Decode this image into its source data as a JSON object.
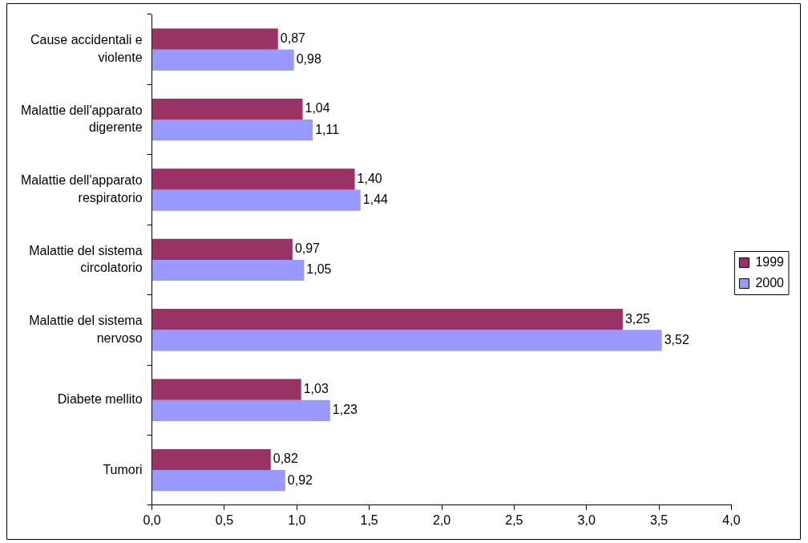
{
  "chart_data": {
    "type": "bar",
    "orientation": "horizontal",
    "categories": [
      "Cause accidentali e violente",
      "Malattie dell'apparato digerente",
      "Malattie dell'apparato respiratorio",
      "Malattie del sistema circolatorio",
      "Malattie del sistema nervoso",
      "Diabete mellito",
      "Tumori"
    ],
    "series": [
      {
        "name": "1999",
        "color": "#993366",
        "values": [
          0.87,
          1.04,
          1.4,
          0.97,
          3.25,
          1.03,
          0.82
        ],
        "value_labels": [
          "0,87",
          "1,04",
          "1,40",
          "0,97",
          "3,25",
          "1,03",
          "0,82"
        ]
      },
      {
        "name": "2000",
        "color": "#9999ff",
        "values": [
          0.98,
          1.11,
          1.44,
          1.05,
          3.52,
          1.23,
          0.92
        ],
        "value_labels": [
          "0,98",
          "1,11",
          "1,44",
          "1,05",
          "3,52",
          "1,23",
          "0,92"
        ]
      }
    ],
    "xlim": [
      0,
      4
    ],
    "xticks": [
      {
        "value": 0,
        "label": "0,0"
      },
      {
        "value": 0.5,
        "label": "0,5"
      },
      {
        "value": 1,
        "label": "1,0"
      },
      {
        "value": 1.5,
        "label": "1,5"
      },
      {
        "value": 2,
        "label": "2,0"
      },
      {
        "value": 2.5,
        "label": "2,5"
      },
      {
        "value": 3,
        "label": "3,0"
      },
      {
        "value": 3.5,
        "label": "3,5"
      },
      {
        "value": 4,
        "label": "4,0"
      }
    ],
    "legend": "right",
    "grid": false
  }
}
